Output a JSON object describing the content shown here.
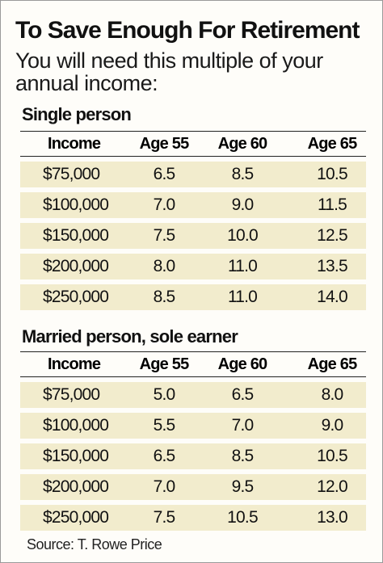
{
  "title": "To Save Enough For Retirement",
  "subtitle": "You will need this multiple of your annual income:",
  "columns": {
    "income": "Income",
    "age55": "Age 55",
    "age60": "Age 60",
    "age65": "Age 65"
  },
  "sections": [
    {
      "title": "Single person",
      "rows": [
        {
          "income": "$75,000",
          "age55": "6.5",
          "age60": "8.5",
          "age65": "10.5"
        },
        {
          "income": "$100,000",
          "age55": "7.0",
          "age60": "9.0",
          "age65": "11.5"
        },
        {
          "income": "$150,000",
          "age55": "7.5",
          "age60": "10.0",
          "age65": "12.5"
        },
        {
          "income": "$200,000",
          "age55": "8.0",
          "age60": "11.0",
          "age65": "13.5"
        },
        {
          "income": "$250,000",
          "age55": "8.5",
          "age60": "11.0",
          "age65": "14.0"
        }
      ]
    },
    {
      "title": "Married person, sole earner",
      "rows": [
        {
          "income": "$75,000",
          "age55": "5.0",
          "age60": "6.5",
          "age65": "8.0"
        },
        {
          "income": "$100,000",
          "age55": "5.5",
          "age60": "7.0",
          "age65": "9.0"
        },
        {
          "income": "$150,000",
          "age55": "6.5",
          "age60": "8.5",
          "age65": "10.5"
        },
        {
          "income": "$200,000",
          "age55": "7.0",
          "age60": "9.5",
          "age65": "12.0"
        },
        {
          "income": "$250,000",
          "age55": "7.5",
          "age60": "10.5",
          "age65": "13.0"
        }
      ]
    }
  ],
  "source": "Source: T. Rowe Price",
  "colors": {
    "row_background": "#f2eccd",
    "page_background": "#fefdf9",
    "text": "#111111"
  }
}
